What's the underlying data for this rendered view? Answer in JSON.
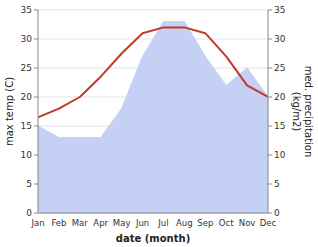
{
  "chart_data": {
    "type": "line",
    "categories": [
      "Jan",
      "Feb",
      "Mar",
      "Apr",
      "May",
      "Jun",
      "Jul",
      "Aug",
      "Sep",
      "Oct",
      "Nov",
      "Dec"
    ],
    "xlabel": "date (month)",
    "ylabel": "max temp (C)",
    "y2label": "med. precipitation\n(kg/m2)",
    "ylim": [
      0,
      35
    ],
    "yticks": [
      0,
      5,
      10,
      15,
      20,
      25,
      30,
      35
    ],
    "y2lim": [
      0,
      35
    ],
    "y2ticks": [
      0,
      5,
      10,
      15,
      20,
      25,
      30,
      35
    ],
    "grid": true,
    "series": [
      {
        "type": "line",
        "color": "#c0392b",
        "values": [
          16.5,
          18.0,
          20.0,
          23.5,
          27.5,
          31.0,
          32.0,
          32.0,
          31.0,
          27.0,
          22.0,
          20.0
        ]
      },
      {
        "type": "area",
        "axis": "y2",
        "color": "#c5d0f5",
        "values": [
          15.0,
          13.0,
          13.0,
          13.0,
          18.0,
          27.0,
          33.0,
          33.0,
          27.0,
          22.0,
          25.0,
          20.0
        ]
      }
    ]
  }
}
